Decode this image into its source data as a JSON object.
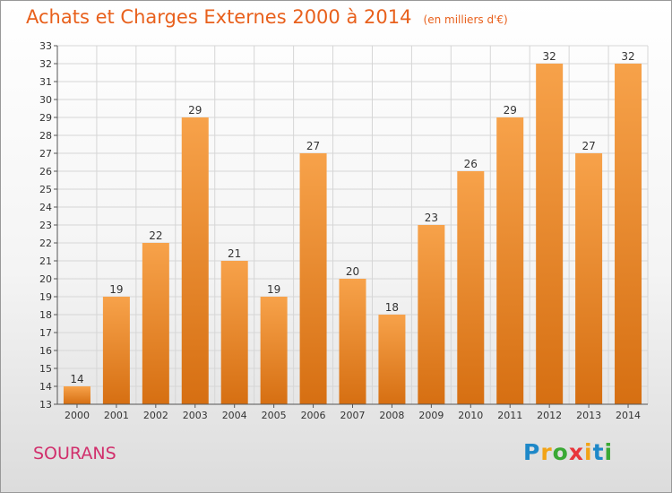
{
  "header": {
    "title": "Achats et Charges Externes 2000 à 2014",
    "unit": "(en milliers d'€)"
  },
  "commune": "SOURANS",
  "logo": {
    "text": "Proxiti",
    "letters": [
      {
        "ch": "P",
        "color": "#1e88c8"
      },
      {
        "ch": "r",
        "color": "#f2a316"
      },
      {
        "ch": "o",
        "color": "#3aa935"
      },
      {
        "ch": "x",
        "color": "#e8353b"
      },
      {
        "ch": "i",
        "color": "#f2a316"
      },
      {
        "ch": "t",
        "color": "#1e88c8"
      },
      {
        "ch": "i",
        "color": "#3aa935"
      }
    ]
  },
  "colors": {
    "bar_light": "#f7a24a",
    "bar_dark": "#d66f12",
    "title": "#e8601c",
    "commune": "#d12f6c"
  },
  "chart_data": {
    "type": "bar",
    "title": "Achats et Charges Externes 2000 à 2014",
    "subtitle": "(en milliers d'€)",
    "categories": [
      "2000",
      "2001",
      "2002",
      "2003",
      "2004",
      "2005",
      "2006",
      "2007",
      "2008",
      "2009",
      "2010",
      "2011",
      "2012",
      "2013",
      "2014"
    ],
    "values": [
      14,
      19,
      22,
      29,
      21,
      19,
      27,
      20,
      18,
      23,
      26,
      29,
      32,
      27,
      32
    ],
    "ylim": [
      13,
      33
    ],
    "yticks": [
      13,
      14,
      15,
      16,
      17,
      18,
      19,
      20,
      21,
      22,
      23,
      24,
      25,
      26,
      27,
      28,
      29,
      30,
      31,
      32,
      33
    ],
    "grid": true,
    "legend": "none"
  }
}
